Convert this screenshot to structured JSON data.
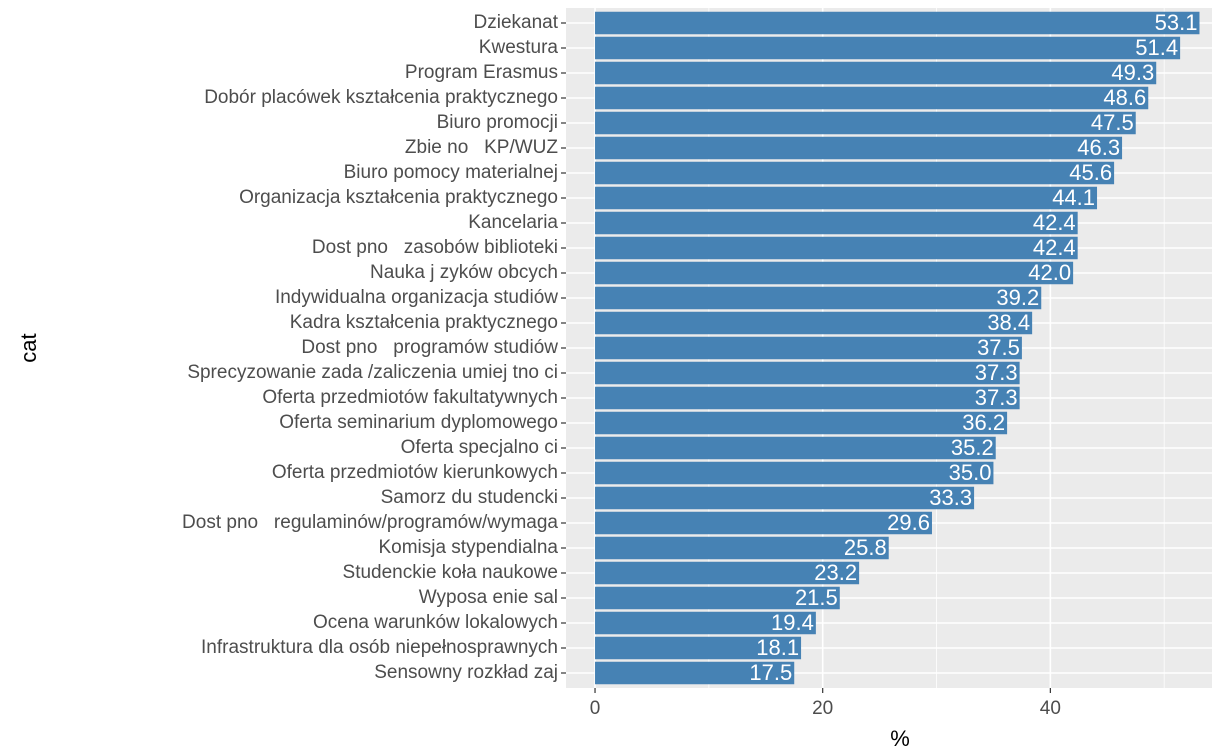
{
  "chart_data": {
    "type": "bar",
    "orientation": "horizontal",
    "x_label": "%",
    "y_label": "cat",
    "categories": [
      "Dziekanat",
      "Kwestura",
      "Program Erasmus",
      "Dobór placówek kształcenia praktycznego",
      "Biuro promocji",
      "Zbie no   KP/WUZ",
      "Biuro pomocy materialnej",
      "Organizacja kształcenia praktycznego",
      "Kancelaria",
      "Dost pno   zasobów biblioteki",
      "Nauka j zyków obcych",
      "Indywidualna organizacja studiów",
      "Kadra kształcenia praktycznego",
      "Dost pno   programów studiów",
      "Sprecyzowanie zada /zaliczenia umiej tno ci",
      "Oferta przedmiotów fakultatywnych",
      "Oferta seminarium dyplomowego",
      "Oferta specjalno ci",
      "Oferta przedmiotów kierunkowych",
      "Samorz du studencki",
      "Dost pno   regulaminów/programów/wymaga",
      "Komisja stypendialna",
      "Studenckie koła naukowe",
      "Wyposa enie sal",
      "Ocena warunków lokalowych",
      "Infrastruktura dla osób niepełnosprawnych",
      "Sensowny rozkład zaj"
    ],
    "values": [
      53.1,
      51.4,
      49.3,
      48.6,
      47.5,
      46.3,
      45.6,
      44.1,
      42.4,
      42.4,
      42.0,
      39.2,
      38.4,
      37.5,
      37.3,
      37.3,
      36.2,
      35.2,
      35.0,
      33.3,
      29.6,
      25.8,
      23.2,
      21.5,
      19.4,
      18.1,
      17.5
    ],
    "value_labels": [
      "53.1",
      "51.4",
      "49.3",
      "48.6",
      "47.5",
      "46.3",
      "45.6",
      "44.1",
      "42.4",
      "42.4",
      "42.0",
      "39.2",
      "38.4",
      "37.5",
      "37.3",
      "37.3",
      "36.2",
      "35.2",
      "35.0",
      "33.3",
      "29.6",
      "25.8",
      "23.2",
      "21.5",
      "19.4",
      "18.1",
      "17.5"
    ],
    "color": "#4682b4",
    "xlim": [
      -2.55,
      54.2
    ],
    "xticks": [
      0,
      20,
      40
    ],
    "xminor_ticks": [
      10,
      30,
      50
    ],
    "grid": true
  }
}
